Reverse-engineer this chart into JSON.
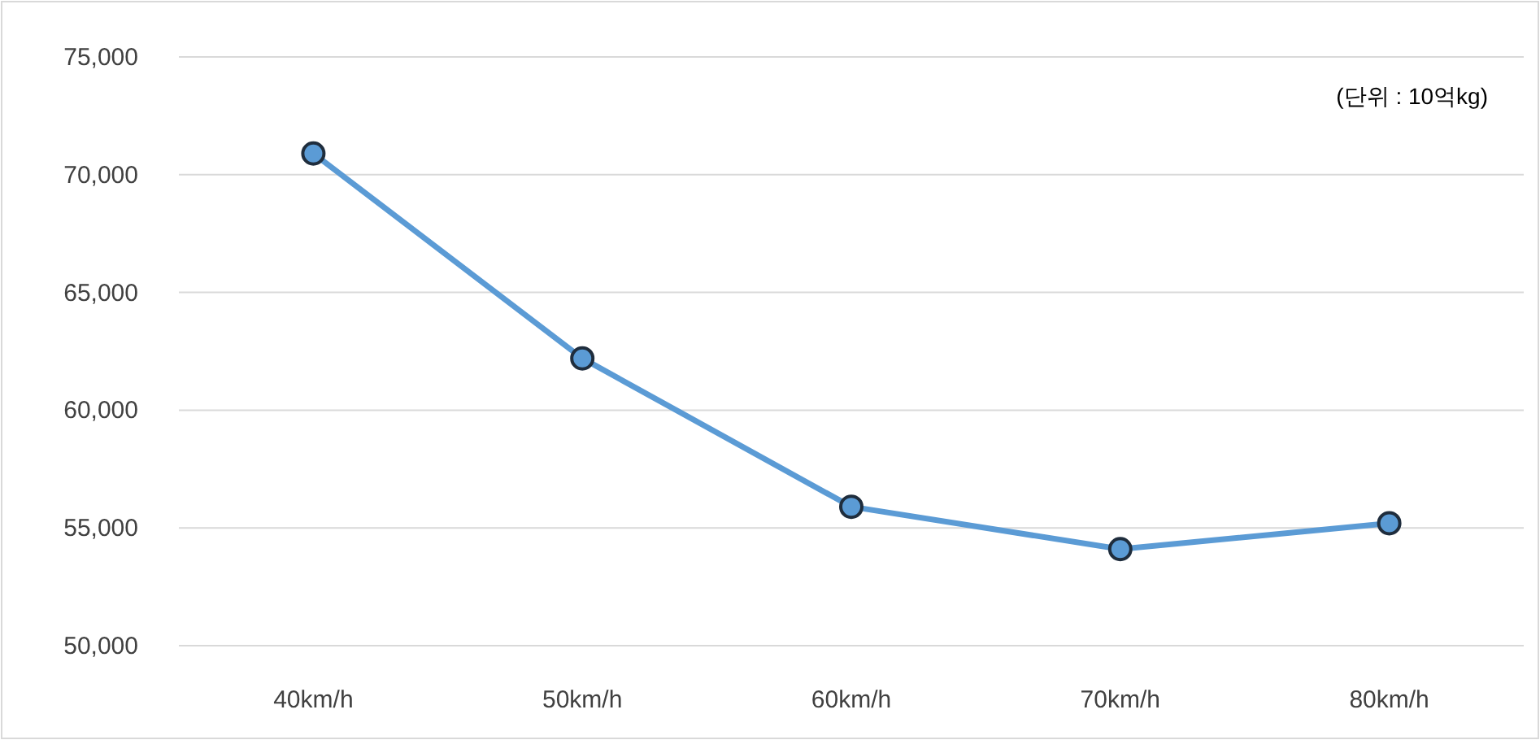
{
  "chart_data": {
    "type": "line",
    "categories": [
      "40km/h",
      "50km/h",
      "60km/h",
      "70km/h",
      "80km/h"
    ],
    "series": [
      {
        "color": "#5b9bd5",
        "values": [
          70900,
          62200,
          55900,
          54100,
          55200
        ]
      }
    ],
    "ylim": [
      50000,
      75000
    ],
    "yticks": [
      {
        "value": 50000,
        "label": "50,000"
      },
      {
        "value": 55000,
        "label": "55,000"
      },
      {
        "value": 60000,
        "label": "60,000"
      },
      {
        "value": 65000,
        "label": "65,000"
      },
      {
        "value": 70000,
        "label": "70,000"
      },
      {
        "value": 75000,
        "label": "75,000"
      }
    ],
    "grid": "y",
    "marker": "circle",
    "line_style": "solid",
    "annotations": [
      "(단위 : 10억kg)"
    ]
  }
}
